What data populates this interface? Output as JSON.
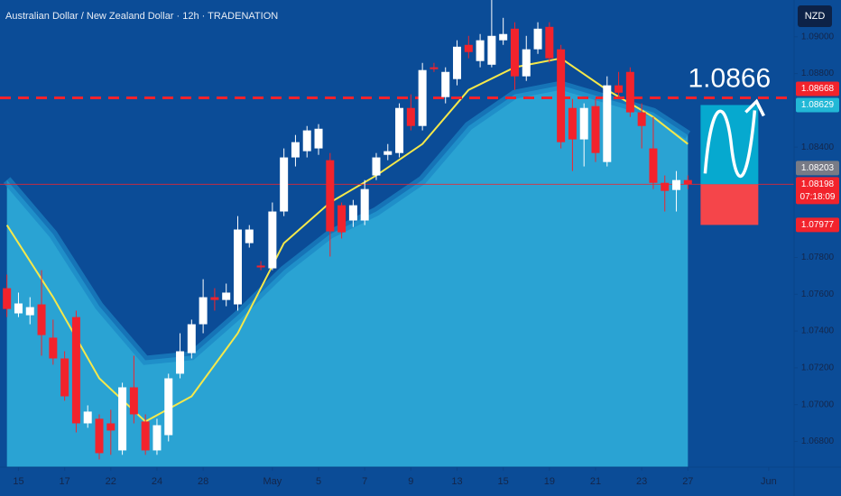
{
  "chart_data": {
    "type": "candlestick",
    "title": "Australian Dollar / New Zealand Dollar · 12h · TRADENATION",
    "currency": "NZD",
    "annotation": "1.0866",
    "up_color": "#ffffff",
    "down_color": "#f2232c",
    "open": [
      1.07633,
      1.07496,
      1.07486,
      1.07545,
      1.07364,
      1.07251,
      1.07476,
      1.06898,
      1.06923,
      1.06898,
      1.06751,
      1.07094,
      1.06908,
      1.06751,
      1.06834,
      1.07168,
      1.0728,
      1.07437,
      1.07584,
      1.07569,
      1.07545,
      1.07878,
      1.07756,
      1.07741,
      1.0805,
      1.08344,
      1.08378,
      1.08393,
      1.08329,
      1.08084,
      1.08001,
      1.08001,
      1.08246,
      1.08358,
      1.08368,
      1.08613,
      1.08515,
      1.08834,
      1.08672,
      1.0877,
      1.08956,
      1.08868,
      1.08848,
      1.08981,
      1.09044,
      1.08785,
      1.08932,
      1.09054,
      1.08932,
      1.08613,
      1.08442,
      1.08623,
      1.08319,
      1.08736,
      1.08809,
      1.08589,
      1.08393,
      1.08206,
      1.08167,
      1.08221
    ],
    "high": [
      1.07707,
      1.07609,
      1.07584,
      1.07731,
      1.07462,
      1.0729,
      1.07511,
      1.06996,
      1.06947,
      1.06972,
      1.07119,
      1.07266,
      1.06947,
      1.06923,
      1.07168,
      1.07388,
      1.07462,
      1.07682,
      1.07633,
      1.07658,
      1.08025,
      1.07976,
      1.0778,
      1.08099,
      1.08393,
      1.08466,
      1.08515,
      1.08525,
      1.08368,
      1.08099,
      1.08113,
      1.08221,
      1.08368,
      1.08417,
      1.08638,
      1.08687,
      1.08858,
      1.08858,
      1.08834,
      1.08981,
      1.09005,
      1.09015,
      1.09201,
      1.09103,
      1.09079,
      1.09005,
      1.09079,
      1.09079,
      1.08956,
      1.08662,
      1.08638,
      1.08662,
      1.08785,
      1.08809,
      1.08834,
      1.08638,
      1.08564,
      1.08246,
      1.0827,
      1.08246
    ],
    "low": [
      1.07476,
      1.07476,
      1.07437,
      1.07266,
      1.07217,
      1.07021,
      1.06849,
      1.06874,
      1.06702,
      1.06727,
      1.06727,
      1.06898,
      1.06727,
      1.06727,
      1.068,
      1.07143,
      1.07251,
      1.07388,
      1.07511,
      1.07535,
      1.07511,
      1.07854,
      1.07731,
      1.07731,
      1.08025,
      1.08295,
      1.08344,
      1.08358,
      1.07805,
      1.07903,
      1.07966,
      1.07976,
      1.08221,
      1.08329,
      1.08344,
      1.08491,
      1.08491,
      1.08809,
      1.08638,
      1.08736,
      1.08883,
      1.08834,
      1.08834,
      1.08956,
      1.08711,
      1.0876,
      1.08907,
      1.08858,
      1.08393,
      1.0827,
      1.08295,
      1.08319,
      1.08295,
      1.08662,
      1.08564,
      1.08393,
      1.08172,
      1.0805,
      1.0805,
      1.08172
    ],
    "close": [
      1.0752,
      1.0755,
      1.0753,
      1.07378,
      1.07251,
      1.07045,
      1.06898,
      1.06962,
      1.06736,
      1.06859,
      1.07094,
      1.06947,
      1.06751,
      1.06888,
      1.07143,
      1.0729,
      1.07437,
      1.07584,
      1.07569,
      1.07609,
      1.07952,
      1.07952,
      1.07746,
      1.0805,
      1.08344,
      1.08427,
      1.08491,
      1.085,
      1.07942,
      1.07937,
      1.08084,
      1.08172,
      1.08344,
      1.08378,
      1.08613,
      1.08515,
      1.08819,
      1.08824,
      1.08809,
      1.08946,
      1.08917,
      1.08981,
      1.09005,
      1.09015,
      1.08785,
      1.08932,
      1.09044,
      1.08883,
      1.08427,
      1.08442,
      1.08613,
      1.08368,
      1.08736,
      1.08696,
      1.08589,
      1.08515,
      1.08206,
      1.08162,
      1.08221,
      1.08198
    ],
    "xlim": [
      -0.6,
      68.2
    ],
    "xticks": [
      {
        "value": 1,
        "label": "15"
      },
      {
        "value": 5,
        "label": "17"
      },
      {
        "value": 9,
        "label": "22"
      },
      {
        "value": 13,
        "label": "24"
      },
      {
        "value": 17,
        "label": "28"
      },
      {
        "value": 23,
        "label": "May"
      },
      {
        "value": 27,
        "label": "5"
      },
      {
        "value": 31,
        "label": "7"
      },
      {
        "value": 35,
        "label": "9"
      },
      {
        "value": 39,
        "label": "13"
      },
      {
        "value": 43,
        "label": "15"
      },
      {
        "value": 47,
        "label": "19"
      },
      {
        "value": 51,
        "label": "21"
      },
      {
        "value": 55,
        "label": "23"
      },
      {
        "value": 59,
        "label": "27"
      },
      {
        "value": 66,
        "label": "Jun"
      }
    ],
    "ylim": [
      1.0666,
      1.092
    ],
    "yticks": [
      {
        "value": 1.09,
        "label": "1.09000"
      },
      {
        "value": 1.088,
        "label": "1.08800"
      },
      {
        "value": 1.084,
        "label": "1.08400"
      },
      {
        "value": 1.078,
        "label": "1.07800"
      },
      {
        "value": 1.076,
        "label": "1.07600"
      },
      {
        "value": 1.074,
        "label": "1.07400"
      },
      {
        "value": 1.072,
        "label": "1.07200"
      },
      {
        "value": 1.07,
        "label": "1.07000"
      },
      {
        "value": 1.068,
        "label": "1.06800"
      }
    ],
    "band": {
      "color": "#2aa3d3",
      "edge_color": "#1b86c4",
      "x": [
        0,
        4,
        8,
        12,
        16,
        20,
        24,
        28,
        32,
        36,
        40,
        44,
        48,
        52,
        56,
        59
      ],
      "values": [
        1.08221,
        1.07927,
        1.07535,
        1.07241,
        1.07266,
        1.07486,
        1.07731,
        1.07927,
        1.0805,
        1.08221,
        1.08515,
        1.08687,
        1.08736,
        1.08662,
        1.08589,
        1.08466
      ]
    },
    "lines": [
      {
        "color": "#f5e84a",
        "x": [
          0,
          4,
          8,
          12,
          16,
          20,
          24,
          28,
          32,
          36,
          40,
          44,
          48,
          52,
          56,
          59
        ],
        "values": [
          1.07976,
          1.07584,
          1.07143,
          1.06908,
          1.07045,
          1.07388,
          1.07878,
          1.08099,
          1.08246,
          1.08417,
          1.08711,
          1.08834,
          1.08883,
          1.08711,
          1.08564,
          1.08417
        ]
      }
    ],
    "price_labels": [
      {
        "value": 1.08668,
        "label": "1.08668",
        "color": "#f2232c"
      },
      {
        "value": 1.08629,
        "label": "1.08629",
        "color": "#22b8d6"
      },
      {
        "value": 1.08203,
        "label": "1.08203",
        "color": "#787b86"
      },
      {
        "value": 1.08198,
        "label": "1.08198",
        "color": "#f2232c",
        "countdown": "07:18:09"
      },
      {
        "value": 1.07977,
        "label": "1.07977",
        "color": "#f2232c"
      }
    ]
  }
}
